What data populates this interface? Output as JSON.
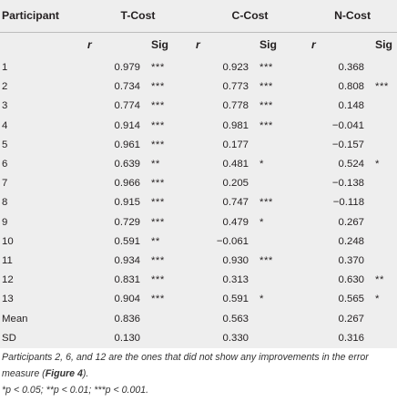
{
  "headers": {
    "participant": "Participant",
    "groups": [
      "T-Cost",
      "C-Cost",
      "N-Cost"
    ],
    "r_label": "r",
    "sig_label": "Sig"
  },
  "rows": [
    {
      "p": "1",
      "t_r": "0.979",
      "t_s": "***",
      "c_r": "0.923",
      "c_s": "***",
      "n_r": "0.368",
      "n_s": ""
    },
    {
      "p": "2",
      "t_r": "0.734",
      "t_s": "***",
      "c_r": "0.773",
      "c_s": "***",
      "n_r": "0.808",
      "n_s": "***"
    },
    {
      "p": "3",
      "t_r": "0.774",
      "t_s": "***",
      "c_r": "0.778",
      "c_s": "***",
      "n_r": "0.148",
      "n_s": ""
    },
    {
      "p": "4",
      "t_r": "0.914",
      "t_s": "***",
      "c_r": "0.981",
      "c_s": "***",
      "n_r": "−0.041",
      "n_s": ""
    },
    {
      "p": "5",
      "t_r": "0.961",
      "t_s": "***",
      "c_r": "0.177",
      "c_s": "",
      "n_r": "−0.157",
      "n_s": ""
    },
    {
      "p": "6",
      "t_r": "0.639",
      "t_s": "**",
      "c_r": "0.481",
      "c_s": "*",
      "n_r": "0.524",
      "n_s": "*"
    },
    {
      "p": "7",
      "t_r": "0.966",
      "t_s": "***",
      "c_r": "0.205",
      "c_s": "",
      "n_r": "−0.138",
      "n_s": ""
    },
    {
      "p": "8",
      "t_r": "0.915",
      "t_s": "***",
      "c_r": "0.747",
      "c_s": "***",
      "n_r": "−0.118",
      "n_s": ""
    },
    {
      "p": "9",
      "t_r": "0.729",
      "t_s": "***",
      "c_r": "0.479",
      "c_s": "*",
      "n_r": "0.267",
      "n_s": ""
    },
    {
      "p": "10",
      "t_r": "0.591",
      "t_s": "**",
      "c_r": "−0.061",
      "c_s": "",
      "n_r": "0.248",
      "n_s": ""
    },
    {
      "p": "11",
      "t_r": "0.934",
      "t_s": "***",
      "c_r": "0.930",
      "c_s": "***",
      "n_r": "0.370",
      "n_s": ""
    },
    {
      "p": "12",
      "t_r": "0.831",
      "t_s": "***",
      "c_r": "0.313",
      "c_s": "",
      "n_r": "0.630",
      "n_s": "**"
    },
    {
      "p": "13",
      "t_r": "0.904",
      "t_s": "***",
      "c_r": "0.591",
      "c_s": "*",
      "n_r": "0.565",
      "n_s": "*"
    },
    {
      "p": "Mean",
      "t_r": "0.836",
      "t_s": "",
      "c_r": "0.563",
      "c_s": "",
      "n_r": "0.267",
      "n_s": ""
    },
    {
      "p": "SD",
      "t_r": "0.130",
      "t_s": "",
      "c_r": "0.330",
      "c_s": "",
      "n_r": "0.316",
      "n_s": ""
    }
  ],
  "caption": {
    "line1_pre": "Participants 2, 6, and 12 are the ones that did not show any improvements in the error measure (",
    "line1_ref": "Figure 4",
    "line1_post": ").",
    "footnote": "*p < 0.05; **p < 0.01; ***p < 0.001."
  }
}
